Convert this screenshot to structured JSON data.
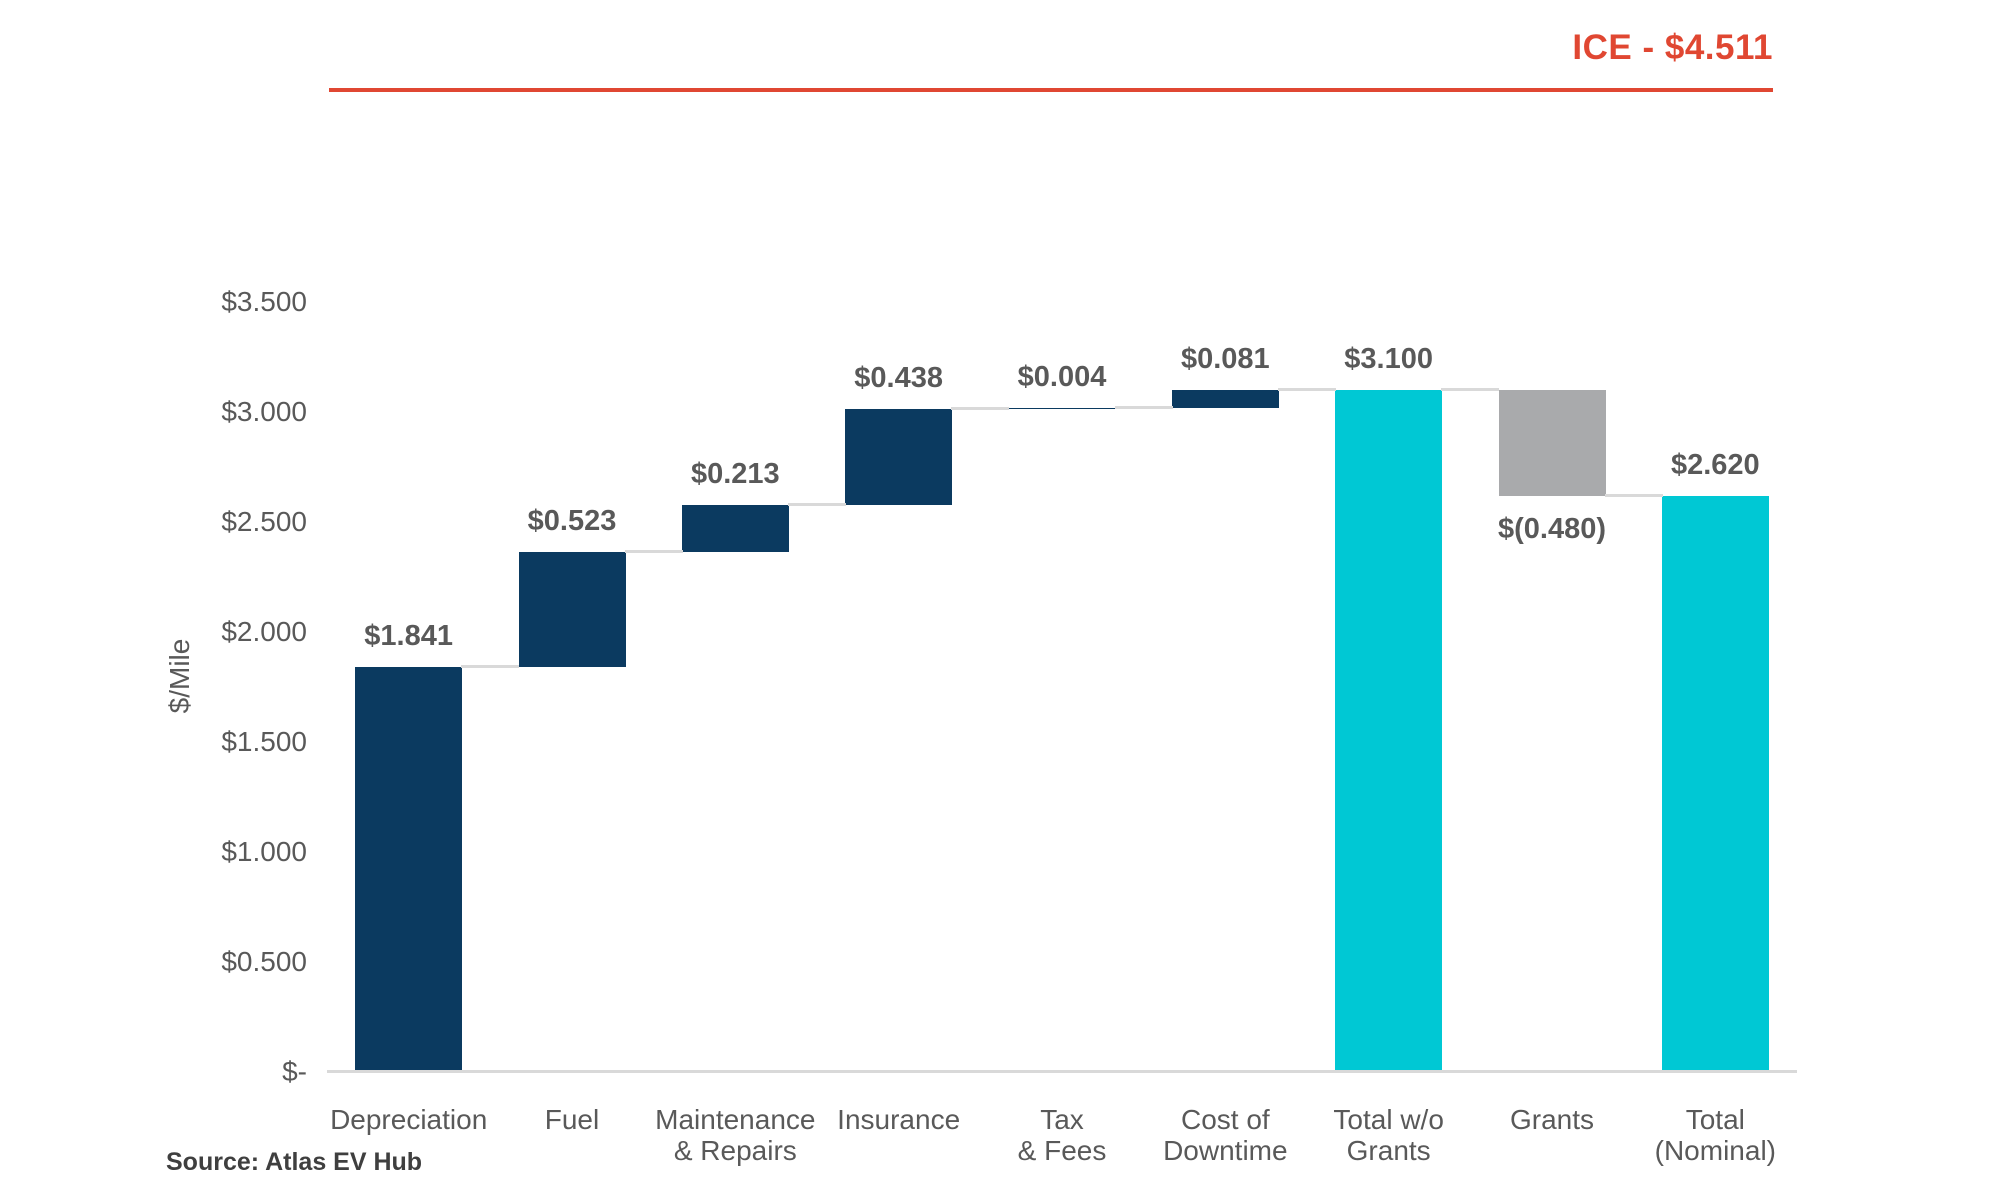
{
  "header": {
    "reference_label": "ICE - $4.511"
  },
  "source_note": "Source: Atlas EV Hub",
  "colors": {
    "increase": "#0B3A60",
    "decrease": "#A9AAAC",
    "total": "#00C8D4",
    "reference": "#E04732",
    "connector": "#D9D9D9",
    "axis_line": "#D9D9D9",
    "text": "#595959"
  },
  "chart_data": {
    "type": "bar",
    "subtype": "waterfall",
    "title": "",
    "xlabel": "",
    "ylabel": "$/Mile",
    "ylim": [
      0,
      3.5
    ],
    "grid": false,
    "legend_position": "none",
    "yticks": [
      {
        "value": 0.0,
        "label": "$-"
      },
      {
        "value": 0.5,
        "label": "$0.500"
      },
      {
        "value": 1.0,
        "label": "$1.000"
      },
      {
        "value": 1.5,
        "label": "$1.500"
      },
      {
        "value": 2.0,
        "label": "$2.000"
      },
      {
        "value": 2.5,
        "label": "$2.500"
      },
      {
        "value": 3.0,
        "label": "$3.000"
      },
      {
        "value": 3.5,
        "label": "$3.500"
      }
    ],
    "reference_line": {
      "label": "ICE - $4.511",
      "value": 4.511
    },
    "categories": [
      "Depreciation",
      "Fuel",
      "Maintenance\n& Repairs",
      "Insurance",
      "Tax\n& Fees",
      "Cost of\nDowntime",
      "Total w/o\nGrants",
      "Grants",
      "Total\n(Nominal)"
    ],
    "bars": [
      {
        "category": "Depreciation",
        "value": 1.841,
        "label": "$1.841",
        "kind": "increase"
      },
      {
        "category": "Fuel",
        "value": 0.523,
        "label": "$0.523",
        "kind": "increase"
      },
      {
        "category": "Maintenance\n& Repairs",
        "value": 0.213,
        "label": "$0.213",
        "kind": "increase"
      },
      {
        "category": "Insurance",
        "value": 0.438,
        "label": "$0.438",
        "kind": "increase"
      },
      {
        "category": "Tax\n& Fees",
        "value": 0.004,
        "label": "$0.004",
        "kind": "increase"
      },
      {
        "category": "Cost of\nDowntime",
        "value": 0.081,
        "label": "$0.081",
        "kind": "increase"
      },
      {
        "category": "Total w/o\nGrants",
        "value": 3.1,
        "label": "$3.100",
        "kind": "total"
      },
      {
        "category": "Grants",
        "value": -0.48,
        "label": "$(0.480)",
        "kind": "decrease"
      },
      {
        "category": "Total\n(Nominal)",
        "value": 2.62,
        "label": "$2.620",
        "kind": "total"
      }
    ]
  }
}
